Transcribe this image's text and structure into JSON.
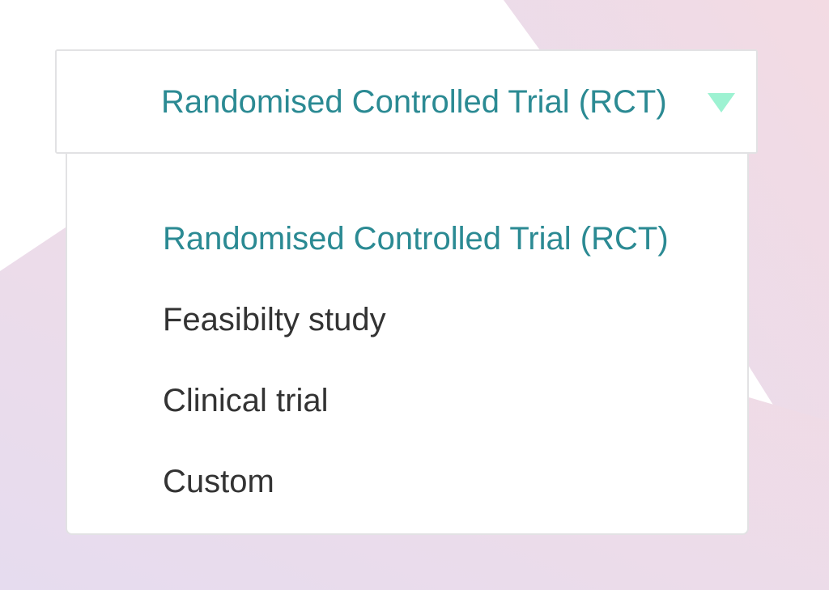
{
  "select": {
    "value": "Randomised Controlled Trial (RCT)",
    "caret_icon": "caret-down-icon",
    "accent_color": "#2b8a93",
    "caret_color": "#9df2d2"
  },
  "options": [
    {
      "label": "Randomised Controlled Trial (RCT)",
      "selected": true
    },
    {
      "label": "Feasibilty study",
      "selected": false
    },
    {
      "label": "Clinical trial",
      "selected": false
    },
    {
      "label": "Custom",
      "selected": false
    }
  ]
}
